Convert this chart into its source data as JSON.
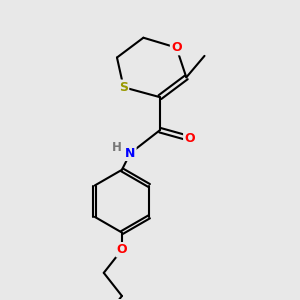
{
  "background_color": "#e8e8e8",
  "bond_color": "#000000",
  "atom_colors": {
    "O": "#ff0000",
    "S": "#999900",
    "N": "#0000ff",
    "H": "#777777",
    "C": "#000000"
  },
  "figsize": [
    3.0,
    3.0
  ],
  "dpi": 100
}
